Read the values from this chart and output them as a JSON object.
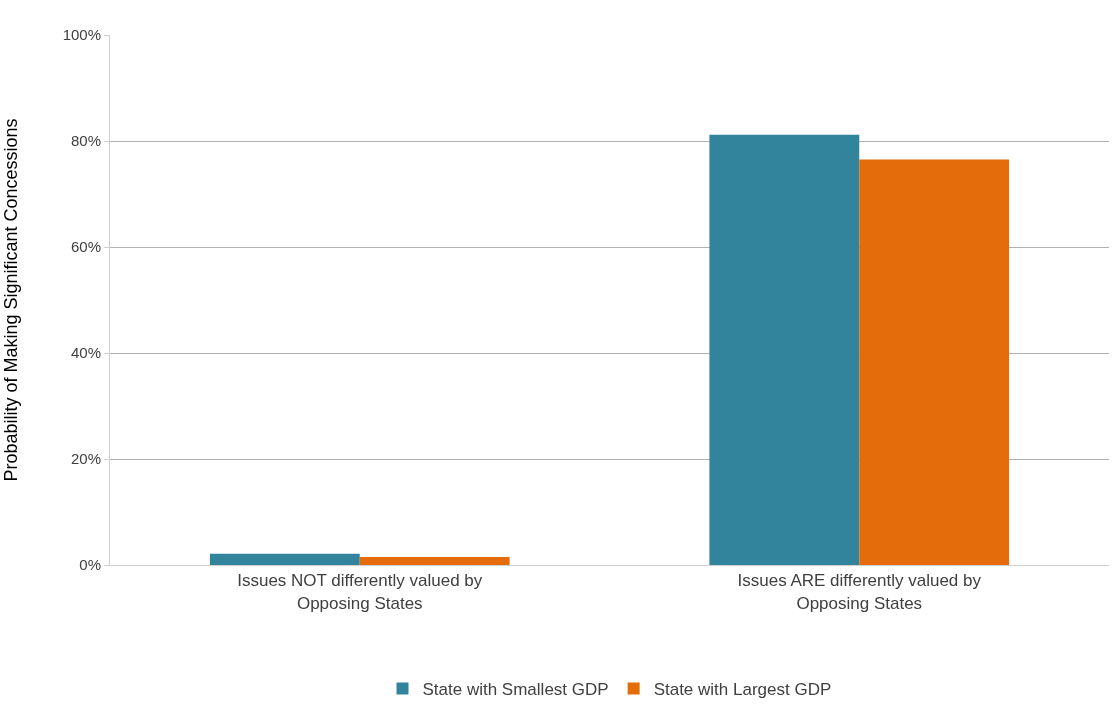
{
  "chart_data": {
    "type": "bar",
    "ylabel": "Probability of Making Significant Concessions",
    "categories": [
      "Issues NOT differently valued by Opposing States",
      "Issues ARE differently valued by Opposing States"
    ],
    "series": [
      {
        "name": "State with Smallest GDP",
        "color": "#31849b",
        "values": [
          2.1,
          81.2
        ]
      },
      {
        "name": "State with Largest GDP",
        "color": "#e46c0a",
        "values": [
          1.5,
          76.5
        ]
      }
    ],
    "ylim": [
      0,
      100
    ],
    "yticks": [
      {
        "value": 0,
        "label": "0%"
      },
      {
        "value": 20,
        "label": "20%"
      },
      {
        "value": 40,
        "label": "40%"
      },
      {
        "value": 60,
        "label": "60%"
      },
      {
        "value": 80,
        "label": "80%"
      },
      {
        "value": 100,
        "label": "100%"
      }
    ],
    "grid": "y",
    "legend": "bottom"
  }
}
